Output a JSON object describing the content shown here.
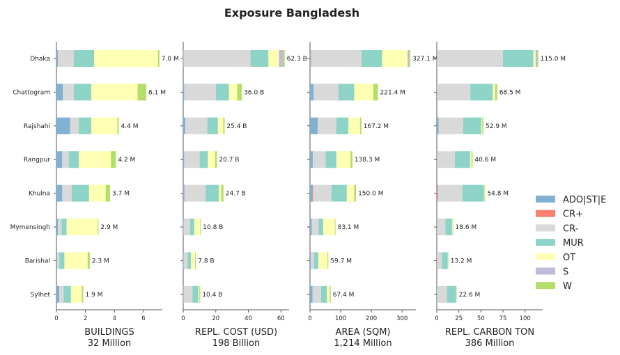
{
  "chart_data": {
    "type": "bar",
    "orientation": "horizontal",
    "stacked": true,
    "title": "Exposure Bangladesh",
    "categories": [
      "Dhaka",
      "Chattogram",
      "Rajshahi",
      "Rangpur",
      "Khulna",
      "Mymensingh",
      "Barishal",
      "Sylhet"
    ],
    "legend": {
      "position": "right",
      "entries": [
        {
          "name": "ADO|ST|E",
          "color": "#80b1d3"
        },
        {
          "name": "CR+",
          "color": "#fb8072"
        },
        {
          "name": "CR-",
          "color": "#d9d9d9"
        },
        {
          "name": "MUR",
          "color": "#8dd3c7"
        },
        {
          "name": "OT",
          "color": "#ffffb3"
        },
        {
          "name": "S",
          "color": "#bebada"
        },
        {
          "name": "W",
          "color": "#b3de69"
        }
      ]
    },
    "grid": false,
    "panels": [
      {
        "xlabel": "BUILDINGS",
        "subtitle": "32 Million",
        "xlim": [
          0,
          7.3
        ],
        "xticks": [
          0,
          2,
          4,
          6
        ],
        "data_labels": [
          "7.0 M",
          "6.1 M",
          "4.4 M",
          "4.2 M",
          "3.7 M",
          "2.9 M",
          "2.3 M",
          "1.9 M"
        ],
        "values": [
          [
            0.1,
            0.0,
            1.1,
            1.4,
            4.4,
            0.0,
            0.1
          ],
          [
            0.45,
            0.0,
            0.75,
            1.2,
            3.2,
            0.0,
            0.6
          ],
          [
            0.95,
            0.0,
            0.6,
            0.85,
            1.8,
            0.0,
            0.1
          ],
          [
            0.4,
            0.0,
            0.45,
            0.7,
            2.2,
            0.0,
            0.35
          ],
          [
            0.4,
            0.0,
            0.65,
            1.2,
            1.15,
            0.0,
            0.3
          ],
          [
            0.1,
            0.0,
            0.25,
            0.35,
            2.15,
            0.0,
            0.05
          ],
          [
            0.05,
            0.0,
            0.15,
            0.35,
            1.6,
            0.0,
            0.15
          ],
          [
            0.2,
            0.0,
            0.3,
            0.5,
            0.75,
            0.0,
            0.1
          ]
        ]
      },
      {
        "xlabel": "REPL. COST (USD)",
        "subtitle": "198 Billion",
        "xlim": [
          0,
          65
        ],
        "xticks": [
          0,
          20,
          40,
          60
        ],
        "data_labels": [
          "62.3 B",
          "36.0 B",
          "25.4 B",
          "20.7 B",
          "24.7 B",
          "10.8 B",
          "7.8 B",
          "10.4 B"
        ],
        "values": [
          [
            0.3,
            0.0,
            41.0,
            11.0,
            6.5,
            2.5,
            1.0
          ],
          [
            0.6,
            0.0,
            19.5,
            8.0,
            5.0,
            0.0,
            2.9
          ],
          [
            1.3,
            0.0,
            13.5,
            6.5,
            3.3,
            0.0,
            0.8
          ],
          [
            0.6,
            0.0,
            9.5,
            5.0,
            4.4,
            0.0,
            1.2
          ],
          [
            0.6,
            0.2,
            13.0,
            8.0,
            1.6,
            0.0,
            1.3
          ],
          [
            0.2,
            0.0,
            4.0,
            2.6,
            3.6,
            0.0,
            0.4
          ],
          [
            0.2,
            0.0,
            2.5,
            2.0,
            2.6,
            0.0,
            0.5
          ],
          [
            0.2,
            0.0,
            5.5,
            3.5,
            0.7,
            0.0,
            0.5
          ]
        ]
      },
      {
        "xlabel": "AREA (SQM)",
        "subtitle": "1,214 Million",
        "xlim": [
          0,
          345
        ],
        "xticks": [
          0,
          100,
          200,
          300
        ],
        "data_labels": [
          "327.1 M",
          "221.4 M",
          "167.2 M",
          "138.3 M",
          "150.0 M",
          "83.1 M",
          "59.7 M",
          "67.4 M"
        ],
        "values": [
          [
            2.0,
            2.0,
            164.0,
            67.0,
            83.0,
            5.0,
            4.1
          ],
          [
            12.0,
            0.0,
            81.0,
            51.0,
            62.0,
            0.0,
            15.4
          ],
          [
            25.0,
            0.0,
            61.0,
            39.0,
            38.0,
            0.0,
            4.2
          ],
          [
            9.0,
            0.0,
            42.0,
            35.0,
            46.0,
            0.0,
            6.3
          ],
          [
            8.0,
            2.0,
            60.0,
            50.0,
            24.0,
            0.0,
            6.0
          ],
          [
            6.0,
            0.0,
            22.0,
            15.0,
            38.0,
            0.0,
            2.1
          ],
          [
            3.0,
            0.0,
            10.0,
            14.0,
            30.0,
            0.0,
            2.7
          ],
          [
            8.0,
            0.0,
            28.0,
            19.0,
            9.0,
            0.0,
            3.4
          ]
        ]
      },
      {
        "xlabel": "REPL. CARBON TON",
        "subtitle": "386 Million",
        "xlim": [
          0,
          120
        ],
        "xticks": [
          0,
          25,
          50,
          75,
          100
        ],
        "data_labels": [
          "115.0 M",
          "68.5 M",
          "52.9 M",
          "40.6 M",
          "54.8 M",
          "18.6 M",
          "13.2 M",
          "22.6 M"
        ],
        "values": [
          [
            0.5,
            0.0,
            74.5,
            34.5,
            2.5,
            2.0,
            1.0
          ],
          [
            0.5,
            0.0,
            37.5,
            25.5,
            2.5,
            0.0,
            2.5
          ],
          [
            2.0,
            0.0,
            28.0,
            20.5,
            1.0,
            0.0,
            1.4
          ],
          [
            0.3,
            0.0,
            20.0,
            17.5,
            1.5,
            0.0,
            1.3
          ],
          [
            0.5,
            1.0,
            27.5,
            24.5,
            0.5,
            0.0,
            0.8
          ],
          [
            0.3,
            0.0,
            9.5,
            7.5,
            0.6,
            0.0,
            0.7
          ],
          [
            0.2,
            0.0,
            5.5,
            6.8,
            0.2,
            0.0,
            0.5
          ],
          [
            0.5,
            0.0,
            11.0,
            10.5,
            0.2,
            0.0,
            0.4
          ]
        ]
      }
    ]
  }
}
